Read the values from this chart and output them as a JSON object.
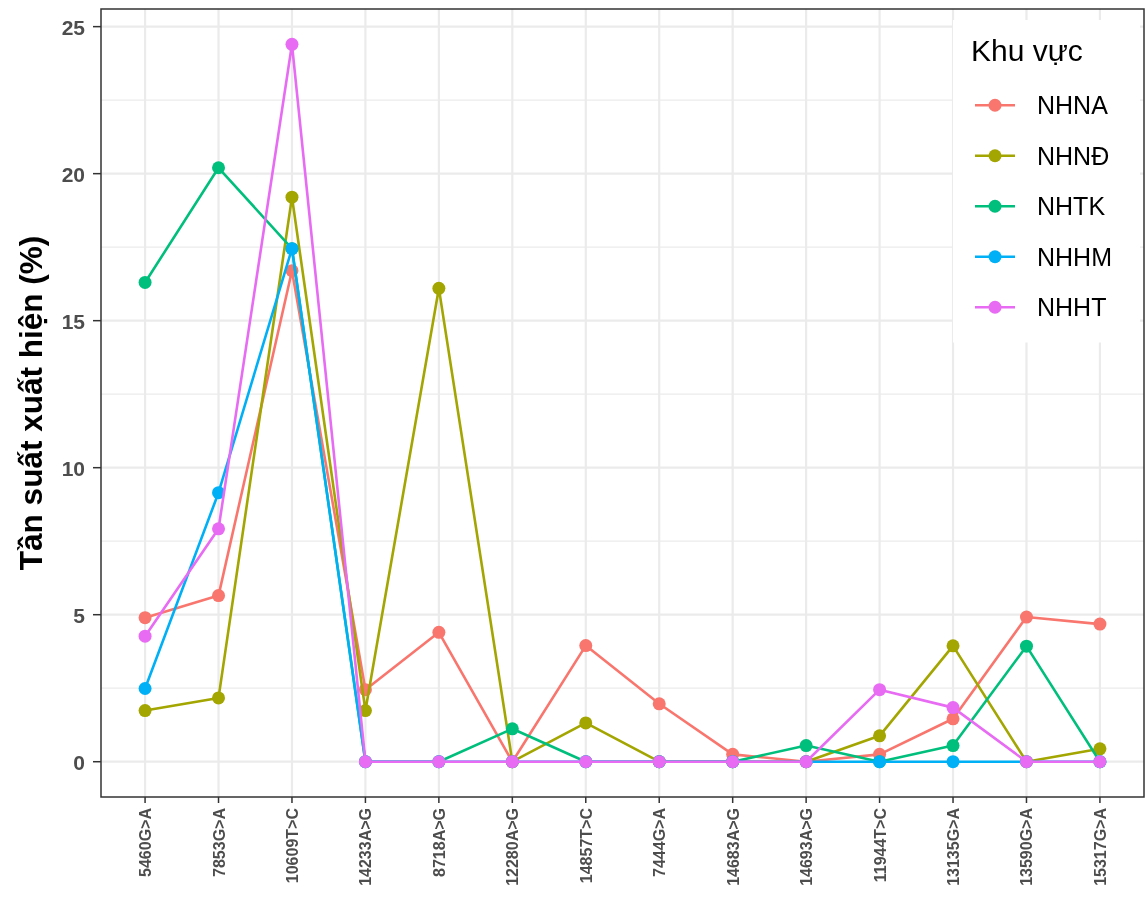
{
  "chart_data": {
    "type": "line",
    "ylabel": "Tần suất xuất hiện (%)",
    "legend_title": "Khu vực",
    "categories": [
      "5460G>A",
      "7853G>A",
      "10609T>C",
      "14233A>G",
      "8718A>G",
      "12280A>G",
      "14857T>C",
      "7444G>A",
      "14683A>G",
      "14693A>G",
      "11944T>C",
      "13135G>A",
      "13590G>A",
      "15317G>A"
    ],
    "series": [
      {
        "name": "NHNA",
        "color": "#f8766d",
        "values": [
          4.9,
          5.65,
          16.7,
          2.45,
          4.4,
          0,
          3.95,
          1.97,
          0.25,
          0,
          0.25,
          1.46,
          4.92,
          4.68
        ]
      },
      {
        "name": "NHNĐ",
        "color": "#a3a500",
        "values": [
          1.74,
          2.17,
          19.2,
          1.74,
          16.1,
          0,
          1.32,
          0,
          0,
          0,
          0.88,
          3.94,
          0,
          0.44
        ]
      },
      {
        "name": "NHTK",
        "color": "#00bf7d",
        "values": [
          16.3,
          20.2,
          17.45,
          0,
          0,
          1.12,
          0,
          0,
          0,
          0.55,
          0,
          0.55,
          3.93,
          0
        ]
      },
      {
        "name": "NHHM",
        "color": "#00b0f6",
        "values": [
          2.49,
          9.15,
          17.45,
          0,
          0,
          0,
          0,
          0,
          0,
          0,
          0,
          0,
          0,
          0
        ]
      },
      {
        "name": "NHHT",
        "color": "#e76bf3",
        "values": [
          4.27,
          7.92,
          24.4,
          0,
          0,
          0,
          0,
          0,
          0,
          0,
          2.45,
          1.84,
          0,
          0
        ]
      }
    ],
    "ylim": [
      -1.2,
      25.6
    ],
    "yticks": [
      0,
      5,
      10,
      15,
      20,
      25
    ],
    "grid": true,
    "legend": "top right",
    "marker": "circle"
  }
}
